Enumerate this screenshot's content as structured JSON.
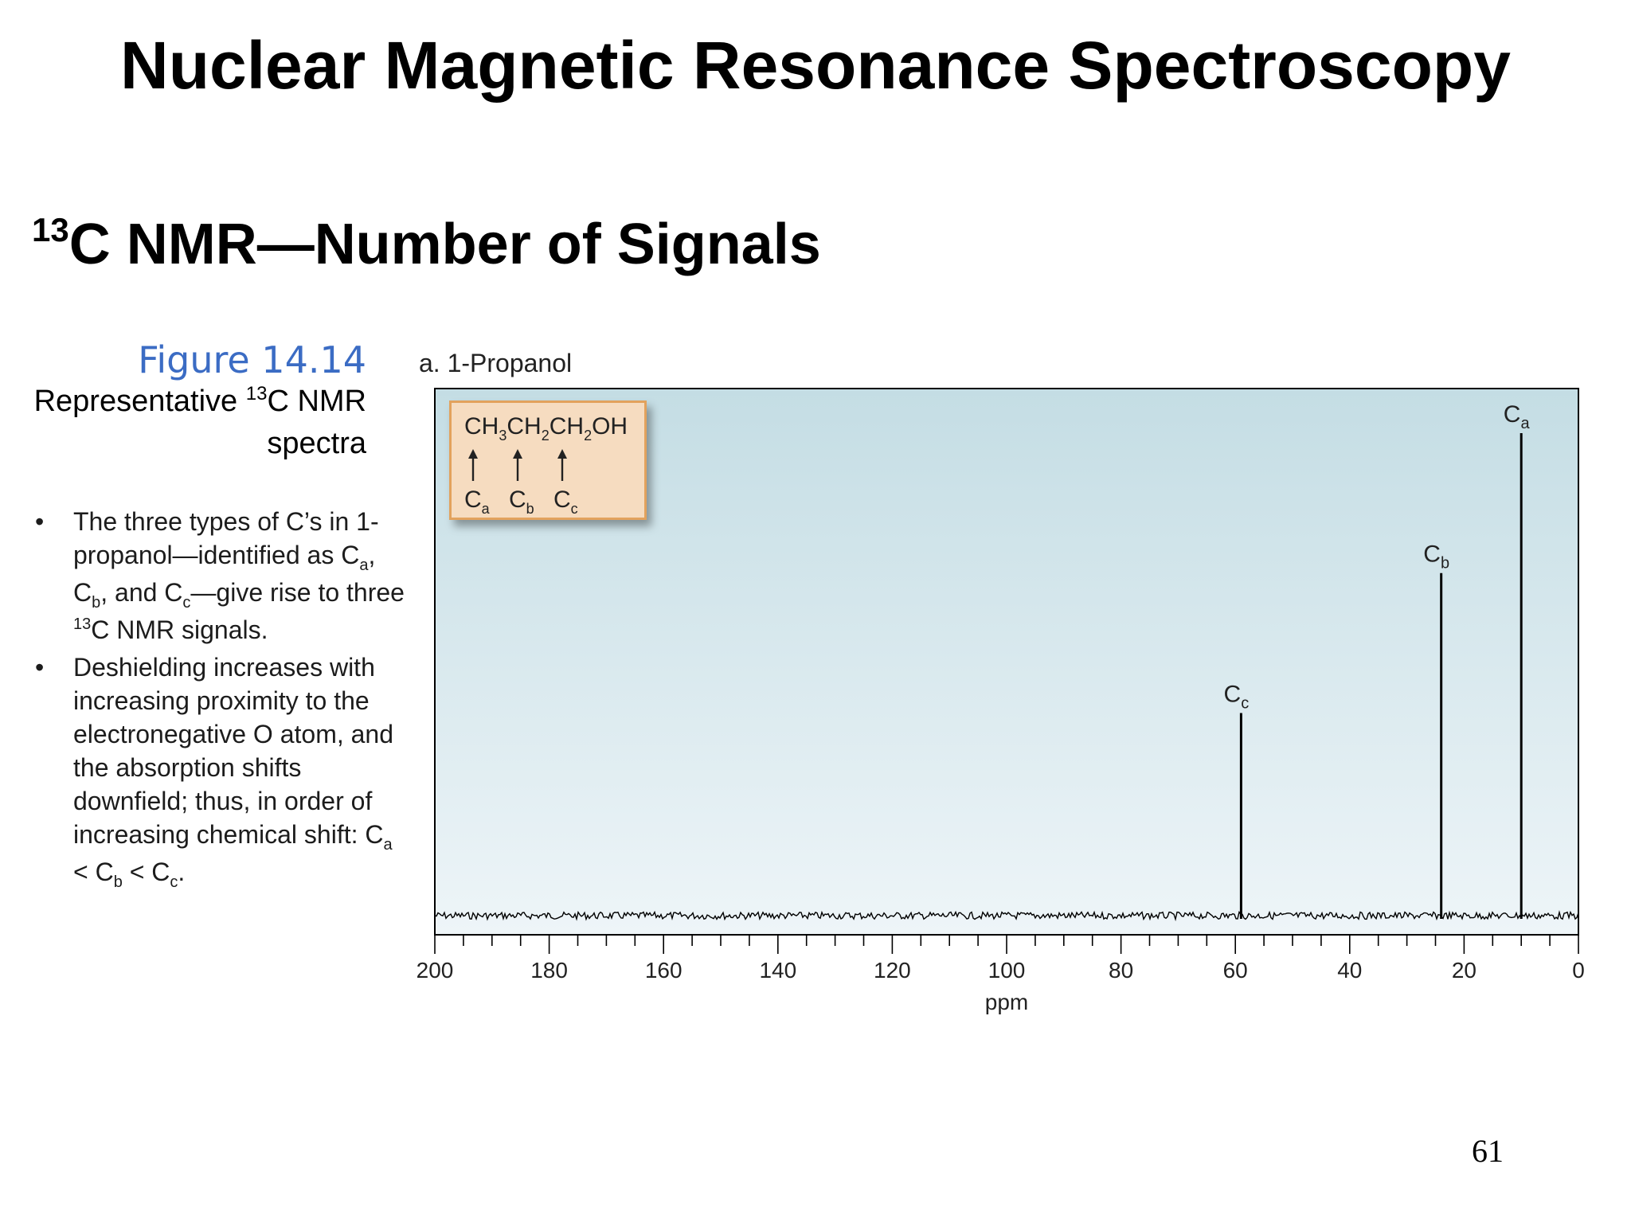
{
  "title": "Nuclear Magnetic Resonance Spectroscopy",
  "subtitle": {
    "sup": "13",
    "text": "C NMR—Number of Signals"
  },
  "figure": {
    "number": "Figure 14.14",
    "desc_pre": "Representative ",
    "desc_sup": "13",
    "desc_post": "C NMR spectra"
  },
  "bullets": [
    {
      "parts": [
        {
          "t": "The three types of C’s in 1-propanol—identified as C"
        },
        {
          "sub": "a"
        },
        {
          "t": ", C"
        },
        {
          "sub": "b"
        },
        {
          "t": ", and C"
        },
        {
          "sub": "c"
        },
        {
          "t": "—give rise to three "
        },
        {
          "sup": "13"
        },
        {
          "t": "C NMR signals."
        }
      ]
    },
    {
      "parts": [
        {
          "t": "Deshielding increases with increasing proximity to the electronegative O atom, and the absorption shifts downfield; thus, in order of increasing chemical shift: C"
        },
        {
          "sub": "a"
        },
        {
          "t": " < C"
        },
        {
          "sub": "b"
        },
        {
          "t": " < C"
        },
        {
          "sub": "c"
        },
        {
          "t": "."
        }
      ]
    }
  ],
  "panel_label": "a. 1-Propanol",
  "molecule": {
    "formula": [
      {
        "t": "CH"
      },
      {
        "sub": "3"
      },
      {
        "t": "CH"
      },
      {
        "sub": "2"
      },
      {
        "t": "CH"
      },
      {
        "sub": "2"
      },
      {
        "t": "OH"
      }
    ],
    "labels": [
      {
        "base": "C",
        "sub": "a"
      },
      {
        "base": "C",
        "sub": "b"
      },
      {
        "base": "C",
        "sub": "c"
      }
    ]
  },
  "chart_data": {
    "type": "line",
    "xlabel": "ppm",
    "xlim": [
      200,
      0
    ],
    "x_reversed": true,
    "x_ticks": [
      200,
      180,
      160,
      140,
      120,
      100,
      80,
      60,
      40,
      20,
      0
    ],
    "ylim": [
      0,
      1
    ],
    "grid": false,
    "background": [
      "#c4dde4",
      "#eef5f8"
    ],
    "peaks": [
      {
        "label_base": "C",
        "label_sub": "a",
        "ppm": 10,
        "height": 1.0
      },
      {
        "label_base": "C",
        "label_sub": "b",
        "ppm": 24,
        "height": 0.71
      },
      {
        "label_base": "C",
        "label_sub": "c",
        "ppm": 59,
        "height": 0.42
      }
    ]
  },
  "page_number": "61",
  "colors": {
    "accent": "#3b6cc4",
    "box_fill": "#f6dcc0",
    "box_border": "#e2a25d"
  }
}
